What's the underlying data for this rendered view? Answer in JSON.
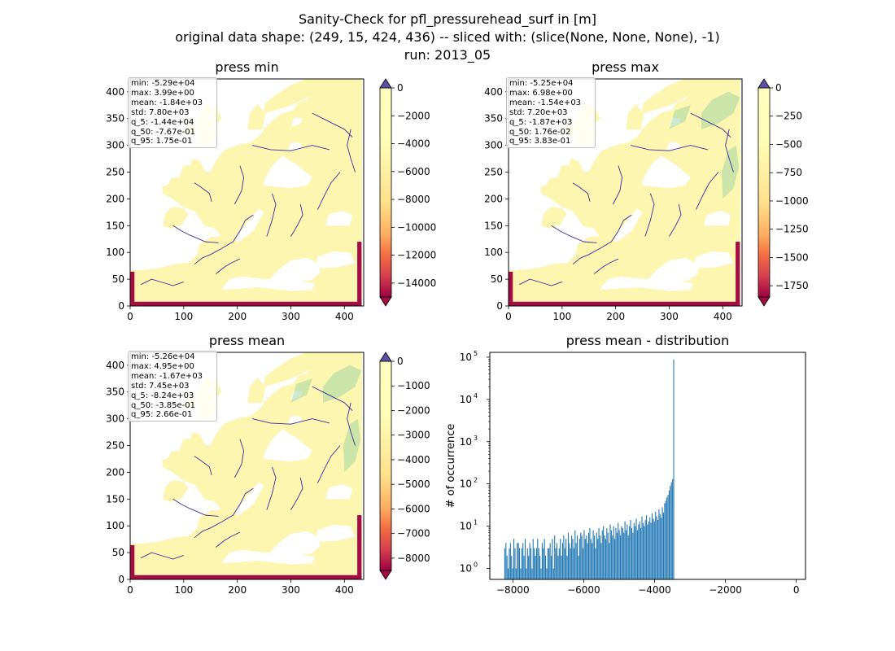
{
  "figure": {
    "title_lines": [
      "Sanity-Check for pfl_pressurehead_surf in [m]",
      "original data shape: (249, 15, 424, 436) -- sliced with: (slice(None, None, None), -1)",
      "run: 2013_05"
    ]
  },
  "colors": {
    "land": "#fdf6b0",
    "river": "#3a2c9e",
    "wet_green": "#8fce9f",
    "coast_red": "#a50d45",
    "under": "#a20a43",
    "over": "#5e4fa2",
    "hist_bar": "#1f77b4"
  },
  "map_panels": [
    {
      "id": "press-min",
      "title": "press min",
      "stats": [
        "min: -5.29e+04",
        "max: 3.99e+00",
        "mean: -1.84e+03",
        "std: 7.80e+03",
        "q_5: -1.44e+04",
        "q_50: -7.67e-01",
        "q_95: 1.75e-01"
      ],
      "xticks": [
        0,
        100,
        200,
        300,
        400
      ],
      "yticks": [
        0,
        50,
        100,
        150,
        200,
        250,
        300,
        350,
        400
      ],
      "colorbar": {
        "vmin": -15000,
        "vmax": 0,
        "ticks": [
          0,
          -2000,
          -4000,
          -6000,
          -8000,
          -10000,
          -12000,
          -14000
        ]
      }
    },
    {
      "id": "press-max",
      "title": "press max",
      "stats": [
        "min: -5.25e+04",
        "max: 6.98e+00",
        "mean: -1.54e+03",
        "std: 7.20e+03",
        "q_5: -1.87e+03",
        "q_50: 1.76e-02",
        "q_95: 3.83e-01"
      ],
      "xticks": [
        0,
        100,
        200,
        300,
        400
      ],
      "yticks": [
        0,
        50,
        100,
        150,
        200,
        250,
        300,
        350,
        400
      ],
      "colorbar": {
        "vmin": -1850,
        "vmax": 0,
        "ticks": [
          0,
          -250,
          -500,
          -750,
          -1000,
          -1250,
          -1500,
          -1750
        ]
      }
    },
    {
      "id": "press-mean",
      "title": "press mean",
      "stats": [
        "min: -5.26e+04",
        "max: 4.95e+00",
        "mean: -1.67e+03",
        "std: 7.45e+03",
        "q_5: -8.24e+03",
        "q_50: -3.85e-01",
        "q_95: 2.66e-01"
      ],
      "xticks": [
        0,
        100,
        200,
        300,
        400
      ],
      "yticks": [
        0,
        50,
        100,
        150,
        200,
        250,
        300,
        350,
        400
      ],
      "colorbar": {
        "vmin": -8500,
        "vmax": 0,
        "ticks": [
          0,
          -1000,
          -2000,
          -3000,
          -4000,
          -5000,
          -6000,
          -7000,
          -8000
        ]
      }
    }
  ],
  "chart_data": [
    {
      "type": "heatmap",
      "title": "press min",
      "x_range": [
        0,
        436
      ],
      "y_range": [
        0,
        424
      ],
      "colorscale": "Spectral",
      "color_range": [
        -15000,
        0
      ]
    },
    {
      "type": "heatmap",
      "title": "press max",
      "x_range": [
        0,
        436
      ],
      "y_range": [
        0,
        424
      ],
      "colorscale": "Spectral",
      "color_range": [
        -1850,
        0
      ]
    },
    {
      "type": "heatmap",
      "title": "press mean",
      "x_range": [
        0,
        436
      ],
      "y_range": [
        0,
        424
      ],
      "colorscale": "Spectral",
      "color_range": [
        -8500,
        0
      ]
    },
    {
      "type": "bar",
      "title": "press mean - distribution",
      "ylabel": "# of occurrence",
      "xlabel": "",
      "yscale": "log",
      "xlim": [
        -8650,
        260
      ],
      "ylim": [
        0.55,
        130000
      ],
      "xticks": [
        -8000,
        -6000,
        -4000,
        -2000,
        0
      ],
      "yticks": [
        1,
        10,
        100,
        1000,
        10000,
        100000
      ],
      "bin_width": 32,
      "bins_left_edge": -8240,
      "counts": [
        3,
        4,
        2,
        1,
        3,
        4,
        2,
        1,
        5,
        3,
        1,
        4,
        4,
        3,
        1,
        3,
        4,
        2,
        5,
        1,
        3,
        2,
        4,
        3,
        1,
        5,
        3,
        2,
        3,
        5,
        3,
        2,
        1,
        4,
        3,
        5,
        2,
        1,
        3,
        3,
        4,
        2,
        5,
        1,
        6,
        3,
        4,
        2,
        3,
        5,
        2,
        4,
        6,
        3,
        5,
        2,
        7,
        4,
        3,
        6,
        5,
        3,
        8,
        4,
        6,
        2,
        5,
        7,
        6,
        3,
        8,
        5,
        6,
        4,
        7,
        9,
        5,
        4,
        8,
        6,
        3,
        7,
        5,
        9,
        6,
        4,
        8,
        10,
        6,
        5,
        9,
        7,
        4,
        11,
        8,
        6,
        10,
        5,
        9,
        7,
        12,
        8,
        6,
        10,
        9,
        7,
        13,
        8,
        11,
        6,
        10,
        14,
        9,
        7,
        12,
        10,
        15,
        8,
        11,
        13,
        9,
        17,
        12,
        10,
        14,
        18,
        11,
        13,
        16,
        12,
        20,
        15,
        13,
        22,
        17,
        14,
        25,
        19,
        16,
        28,
        21,
        35,
        40,
        48,
        55,
        70,
        90,
        110,
        130,
        88000
      ]
    }
  ]
}
